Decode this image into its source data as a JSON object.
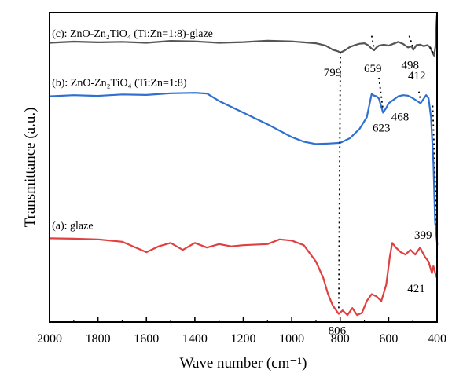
{
  "chart_data": {
    "type": "line",
    "xlabel": "Wave number (cm⁻¹)",
    "ylabel": "Transmittance (a.u.)",
    "xlim": [
      2000,
      400
    ],
    "x_reversed": true,
    "y_ticks_shown": false,
    "grid": false,
    "ticks": [
      2000,
      1800,
      1600,
      1400,
      1200,
      1000,
      800,
      600,
      400
    ],
    "series": [
      {
        "name": "(c): ZnO-Zn₂TiO₄ (Ti:Zn=1:8)-glaze",
        "color": "#555555",
        "points": [
          [
            2000,
            0.87
          ],
          [
            1900,
            0.875
          ],
          [
            1800,
            0.872
          ],
          [
            1700,
            0.874
          ],
          [
            1600,
            0.87
          ],
          [
            1500,
            0.878
          ],
          [
            1400,
            0.876
          ],
          [
            1300,
            0.87
          ],
          [
            1200,
            0.873
          ],
          [
            1100,
            0.879
          ],
          [
            1000,
            0.876
          ],
          [
            950,
            0.872
          ],
          [
            900,
            0.868
          ],
          [
            860,
            0.858
          ],
          [
            830,
            0.84
          ],
          [
            810,
            0.834
          ],
          [
            799,
            0.828
          ],
          [
            780,
            0.838
          ],
          [
            760,
            0.852
          ],
          [
            740,
            0.86
          ],
          [
            720,
            0.866
          ],
          [
            700,
            0.868
          ],
          [
            685,
            0.86
          ],
          [
            670,
            0.845
          ],
          [
            660,
            0.838
          ],
          [
            650,
            0.85
          ],
          [
            640,
            0.858
          ],
          [
            620,
            0.862
          ],
          [
            600,
            0.858
          ],
          [
            580,
            0.866
          ],
          [
            560,
            0.874
          ],
          [
            540,
            0.865
          ],
          [
            520,
            0.85
          ],
          [
            505,
            0.855
          ],
          [
            498,
            0.84
          ],
          [
            485,
            0.86
          ],
          [
            470,
            0.862
          ],
          [
            455,
            0.856
          ],
          [
            440,
            0.86
          ],
          [
            428,
            0.85
          ],
          [
            420,
            0.83
          ],
          [
            412,
            0.815
          ],
          [
            406,
            0.86
          ],
          [
            402,
            0.96
          ],
          [
            400,
            0.99
          ]
        ]
      },
      {
        "name": "(b): ZnO-Zn₂TiO₄ (Ti:Zn=1:8)",
        "color": "#2f6fd0",
        "points": [
          [
            2000,
            0.64
          ],
          [
            1900,
            0.645
          ],
          [
            1800,
            0.642
          ],
          [
            1700,
            0.648
          ],
          [
            1600,
            0.646
          ],
          [
            1500,
            0.653
          ],
          [
            1400,
            0.655
          ],
          [
            1350,
            0.652
          ],
          [
            1300,
            0.62
          ],
          [
            1200,
            0.57
          ],
          [
            1100,
            0.52
          ],
          [
            1000,
            0.465
          ],
          [
            950,
            0.445
          ],
          [
            900,
            0.435
          ],
          [
            850,
            0.437
          ],
          [
            800,
            0.44
          ],
          [
            760,
            0.46
          ],
          [
            720,
            0.5
          ],
          [
            690,
            0.55
          ],
          [
            680,
            0.6
          ],
          [
            670,
            0.65
          ],
          [
            660,
            0.643
          ],
          [
            650,
            0.64
          ],
          [
            640,
            0.63
          ],
          [
            623,
            0.57
          ],
          [
            610,
            0.59
          ],
          [
            600,
            0.61
          ],
          [
            580,
            0.625
          ],
          [
            560,
            0.64
          ],
          [
            540,
            0.645
          ],
          [
            520,
            0.643
          ],
          [
            500,
            0.632
          ],
          [
            485,
            0.622
          ],
          [
            468,
            0.61
          ],
          [
            455,
            0.63
          ],
          [
            445,
            0.645
          ],
          [
            435,
            0.632
          ],
          [
            425,
            0.55
          ],
          [
            415,
            0.35
          ],
          [
            408,
            0.1
          ],
          [
            399,
            0.0
          ]
        ]
      },
      {
        "name": "(a): glaze",
        "color": "#e04040",
        "points": [
          [
            2000,
            0.03
          ],
          [
            1900,
            0.028
          ],
          [
            1800,
            0.025
          ],
          [
            1700,
            0.015
          ],
          [
            1600,
            -0.03
          ],
          [
            1550,
            -0.005
          ],
          [
            1500,
            0.01
          ],
          [
            1450,
            -0.02
          ],
          [
            1400,
            0.01
          ],
          [
            1350,
            -0.01
          ],
          [
            1300,
            0.005
          ],
          [
            1250,
            -0.005
          ],
          [
            1200,
            0.0
          ],
          [
            1100,
            0.005
          ],
          [
            1050,
            0.025
          ],
          [
            1000,
            0.02
          ],
          [
            950,
            0.0
          ],
          [
            900,
            -0.07
          ],
          [
            870,
            -0.14
          ],
          [
            850,
            -0.21
          ],
          [
            830,
            -0.26
          ],
          [
            806,
            -0.295
          ],
          [
            790,
            -0.28
          ],
          [
            770,
            -0.3
          ],
          [
            750,
            -0.27
          ],
          [
            730,
            -0.3
          ],
          [
            710,
            -0.29
          ],
          [
            690,
            -0.24
          ],
          [
            670,
            -0.21
          ],
          [
            650,
            -0.22
          ],
          [
            630,
            -0.24
          ],
          [
            610,
            -0.17
          ],
          [
            595,
            -0.05
          ],
          [
            585,
            0.01
          ],
          [
            570,
            -0.01
          ],
          [
            550,
            -0.03
          ],
          [
            530,
            -0.04
          ],
          [
            510,
            -0.02
          ],
          [
            490,
            -0.04
          ],
          [
            470,
            -0.01
          ],
          [
            450,
            -0.05
          ],
          [
            435,
            -0.07
          ],
          [
            421,
            -0.12
          ],
          [
            415,
            -0.09
          ],
          [
            405,
            -0.13
          ],
          [
            400,
            -0.14
          ]
        ]
      }
    ],
    "annotations": [
      {
        "text": "799",
        "x": 799,
        "y": 0.828
      },
      {
        "text": "659",
        "x": 659,
        "y": 0.838
      },
      {
        "text": "498",
        "x": 498,
        "y": 0.84
      },
      {
        "text": "412",
        "x": 412,
        "y": 0.815
      },
      {
        "text": "623",
        "x": 623,
        "y": 0.57
      },
      {
        "text": "468",
        "x": 468,
        "y": 0.61
      },
      {
        "text": "399",
        "x": 399,
        "y": 0.0
      },
      {
        "text": "421",
        "x": 421,
        "y": -0.12
      },
      {
        "text": "806",
        "x": 806,
        "y": -0.295
      }
    ],
    "guide_lines": [
      {
        "from": [
          799,
          0.83
        ],
        "to": [
          806,
          -0.28
        ]
      },
      {
        "from": [
          670,
          0.9
        ],
        "to": [
          659,
          0.84
        ]
      },
      {
        "from": [
          640,
          0.72
        ],
        "to": [
          623,
          0.58
        ]
      },
      {
        "from": [
          515,
          0.9
        ],
        "to": [
          498,
          0.845
        ]
      },
      {
        "from": [
          475,
          0.66
        ],
        "to": [
          468,
          0.62
        ]
      },
      {
        "from": [
          430,
          0.85
        ],
        "to": [
          412,
          0.82
        ]
      },
      {
        "from": [
          418,
          0.6
        ],
        "to": [
          399,
          0.0
        ]
      }
    ]
  }
}
